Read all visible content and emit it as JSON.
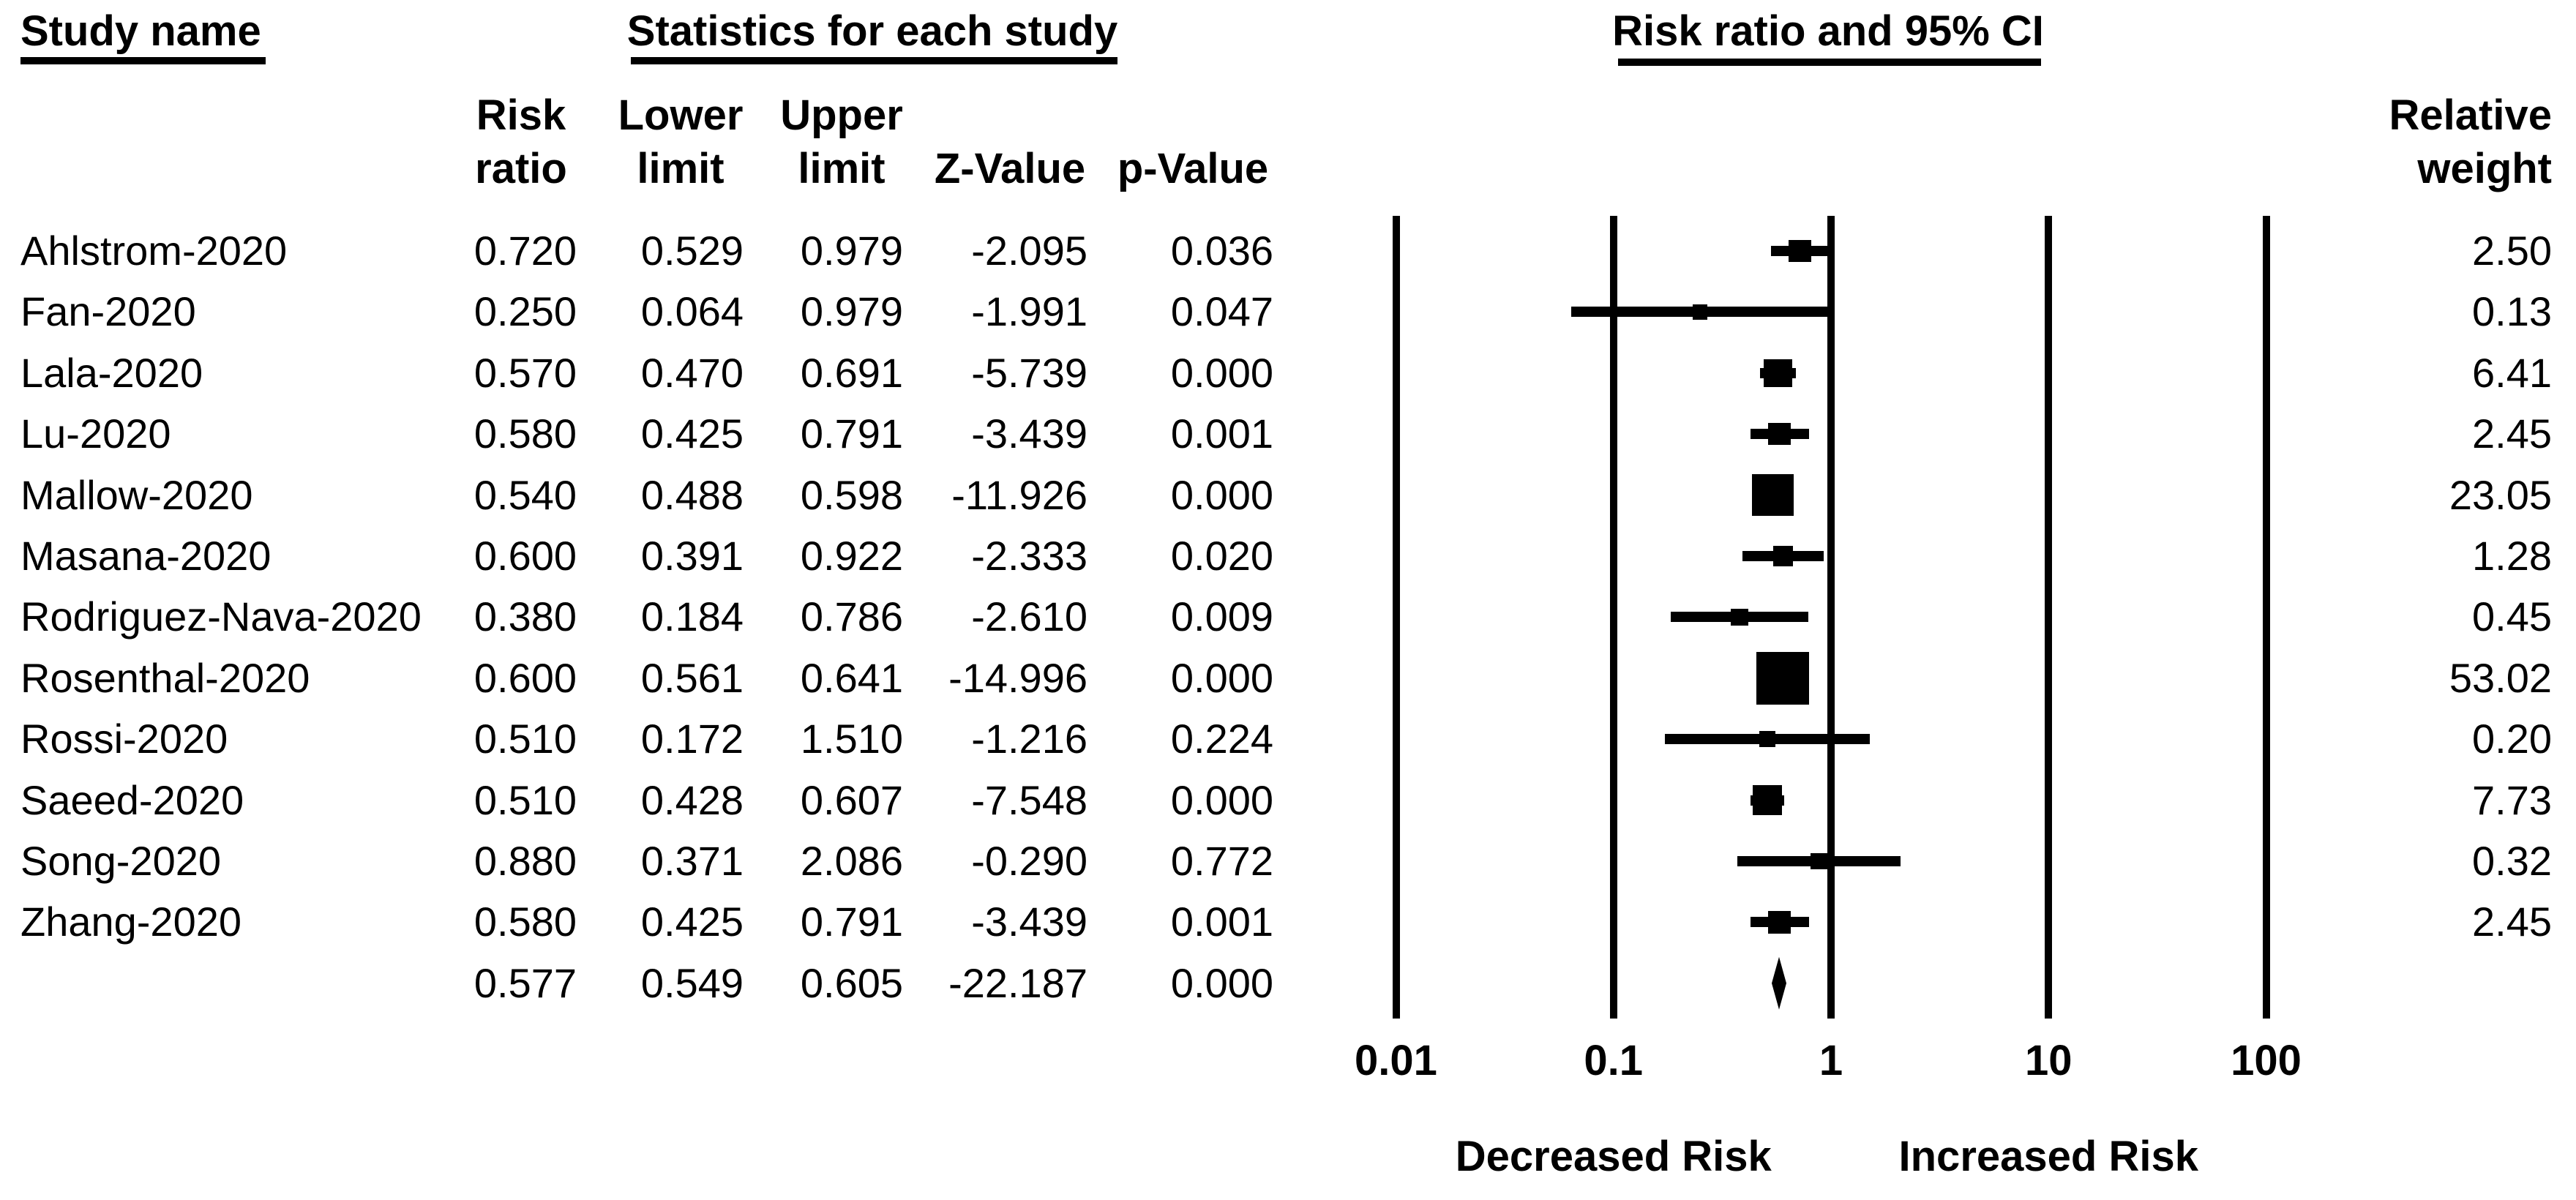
{
  "title_row": {
    "study_name": "Study name",
    "stats": "Statistics for each study",
    "plot": "Risk ratio and 95% CI"
  },
  "column_headers": {
    "risk": "Risk",
    "ratio": "ratio",
    "lower": "Lower",
    "upper": "Upper",
    "limit": "limit",
    "z": "Z-Value",
    "p": "p-Value",
    "relative": "Relative",
    "weight": "weight"
  },
  "colors": {
    "foreground": "#000000",
    "background": "#ffffff"
  },
  "chart_data": {
    "type": "forest",
    "title": "Risk ratio and 95% CI",
    "x_scale": "log10",
    "x_range": [
      0.01,
      100
    ],
    "x_ticks": [
      0.01,
      0.1,
      1,
      10,
      100
    ],
    "x_tick_labels": [
      "0.01",
      "0.1",
      "1",
      "10",
      "100"
    ],
    "vertical_reference_lines": [
      0.01,
      0.1,
      1,
      10,
      100
    ],
    "axis_annotations": {
      "left": "Decreased Risk",
      "right": "Increased Risk"
    },
    "legend": "none",
    "grid": "vertical-log-decades",
    "marker_color": "#000000",
    "studies": [
      {
        "name": "Ahlstrom-2020",
        "risk_ratio": "0.720",
        "lower_limit": "0.529",
        "upper_limit": "0.979",
        "z_value": "-2.095",
        "p_value": "0.036",
        "relative_weight": "2.50"
      },
      {
        "name": "Fan-2020",
        "risk_ratio": "0.250",
        "lower_limit": "0.064",
        "upper_limit": "0.979",
        "z_value": "-1.991",
        "p_value": "0.047",
        "relative_weight": "0.13"
      },
      {
        "name": "Lala-2020",
        "risk_ratio": "0.570",
        "lower_limit": "0.470",
        "upper_limit": "0.691",
        "z_value": "-5.739",
        "p_value": "0.000",
        "relative_weight": "6.41"
      },
      {
        "name": "Lu-2020",
        "risk_ratio": "0.580",
        "lower_limit": "0.425",
        "upper_limit": "0.791",
        "z_value": "-3.439",
        "p_value": "0.001",
        "relative_weight": "2.45"
      },
      {
        "name": "Mallow-2020",
        "risk_ratio": "0.540",
        "lower_limit": "0.488",
        "upper_limit": "0.598",
        "z_value": "-11.926",
        "p_value": "0.000",
        "relative_weight": "23.05"
      },
      {
        "name": "Masana-2020",
        "risk_ratio": "0.600",
        "lower_limit": "0.391",
        "upper_limit": "0.922",
        "z_value": "-2.333",
        "p_value": "0.020",
        "relative_weight": "1.28"
      },
      {
        "name": "Rodriguez-Nava-2020",
        "risk_ratio": "0.380",
        "lower_limit": "0.184",
        "upper_limit": "0.786",
        "z_value": "-2.610",
        "p_value": "0.009",
        "relative_weight": "0.45"
      },
      {
        "name": "Rosenthal-2020",
        "risk_ratio": "0.600",
        "lower_limit": "0.561",
        "upper_limit": "0.641",
        "z_value": "-14.996",
        "p_value": "0.000",
        "relative_weight": "53.02"
      },
      {
        "name": "Rossi-2020",
        "risk_ratio": "0.510",
        "lower_limit": "0.172",
        "upper_limit": "1.510",
        "z_value": "-1.216",
        "p_value": "0.224",
        "relative_weight": "0.20"
      },
      {
        "name": "Saeed-2020",
        "risk_ratio": "0.510",
        "lower_limit": "0.428",
        "upper_limit": "0.607",
        "z_value": "-7.548",
        "p_value": "0.000",
        "relative_weight": "7.73"
      },
      {
        "name": "Song-2020",
        "risk_ratio": "0.880",
        "lower_limit": "0.371",
        "upper_limit": "2.086",
        "z_value": "-0.290",
        "p_value": "0.772",
        "relative_weight": "0.32"
      },
      {
        "name": "Zhang-2020",
        "risk_ratio": "0.580",
        "lower_limit": "0.425",
        "upper_limit": "0.791",
        "z_value": "-3.439",
        "p_value": "0.001",
        "relative_weight": "2.45"
      }
    ],
    "overall": {
      "name": "",
      "risk_ratio": "0.577",
      "lower_limit": "0.549",
      "upper_limit": "0.605",
      "z_value": "-22.187",
      "p_value": "0.000",
      "relative_weight": "",
      "marker": "diamond"
    }
  }
}
